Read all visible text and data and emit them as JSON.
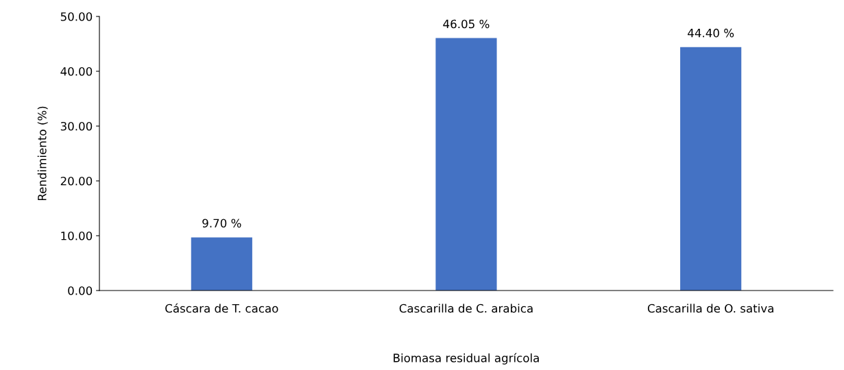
{
  "chart_data": {
    "type": "bar",
    "xlabel": "Biomasa residual agrícola",
    "ylabel": "Rendimiento (%)",
    "categories": [
      "Cáscara de T. cacao",
      "Cascarilla de C. arabica",
      "Cascarilla de O. sativa"
    ],
    "values": [
      9.7,
      46.05,
      44.4
    ],
    "value_labels": [
      "9.70 %",
      "46.05 %",
      "44.40 %"
    ],
    "color": "#4472c4",
    "ylim": [
      0,
      50
    ],
    "yticks": [
      {
        "value": 0,
        "label": "0.00"
      },
      {
        "value": 10,
        "label": "10.00"
      },
      {
        "value": 20,
        "label": "20.00"
      },
      {
        "value": 30,
        "label": "30.00"
      },
      {
        "value": 40,
        "label": "40.00"
      },
      {
        "value": 50,
        "label": "50.00"
      }
    ],
    "grid": false,
    "legend": false
  }
}
